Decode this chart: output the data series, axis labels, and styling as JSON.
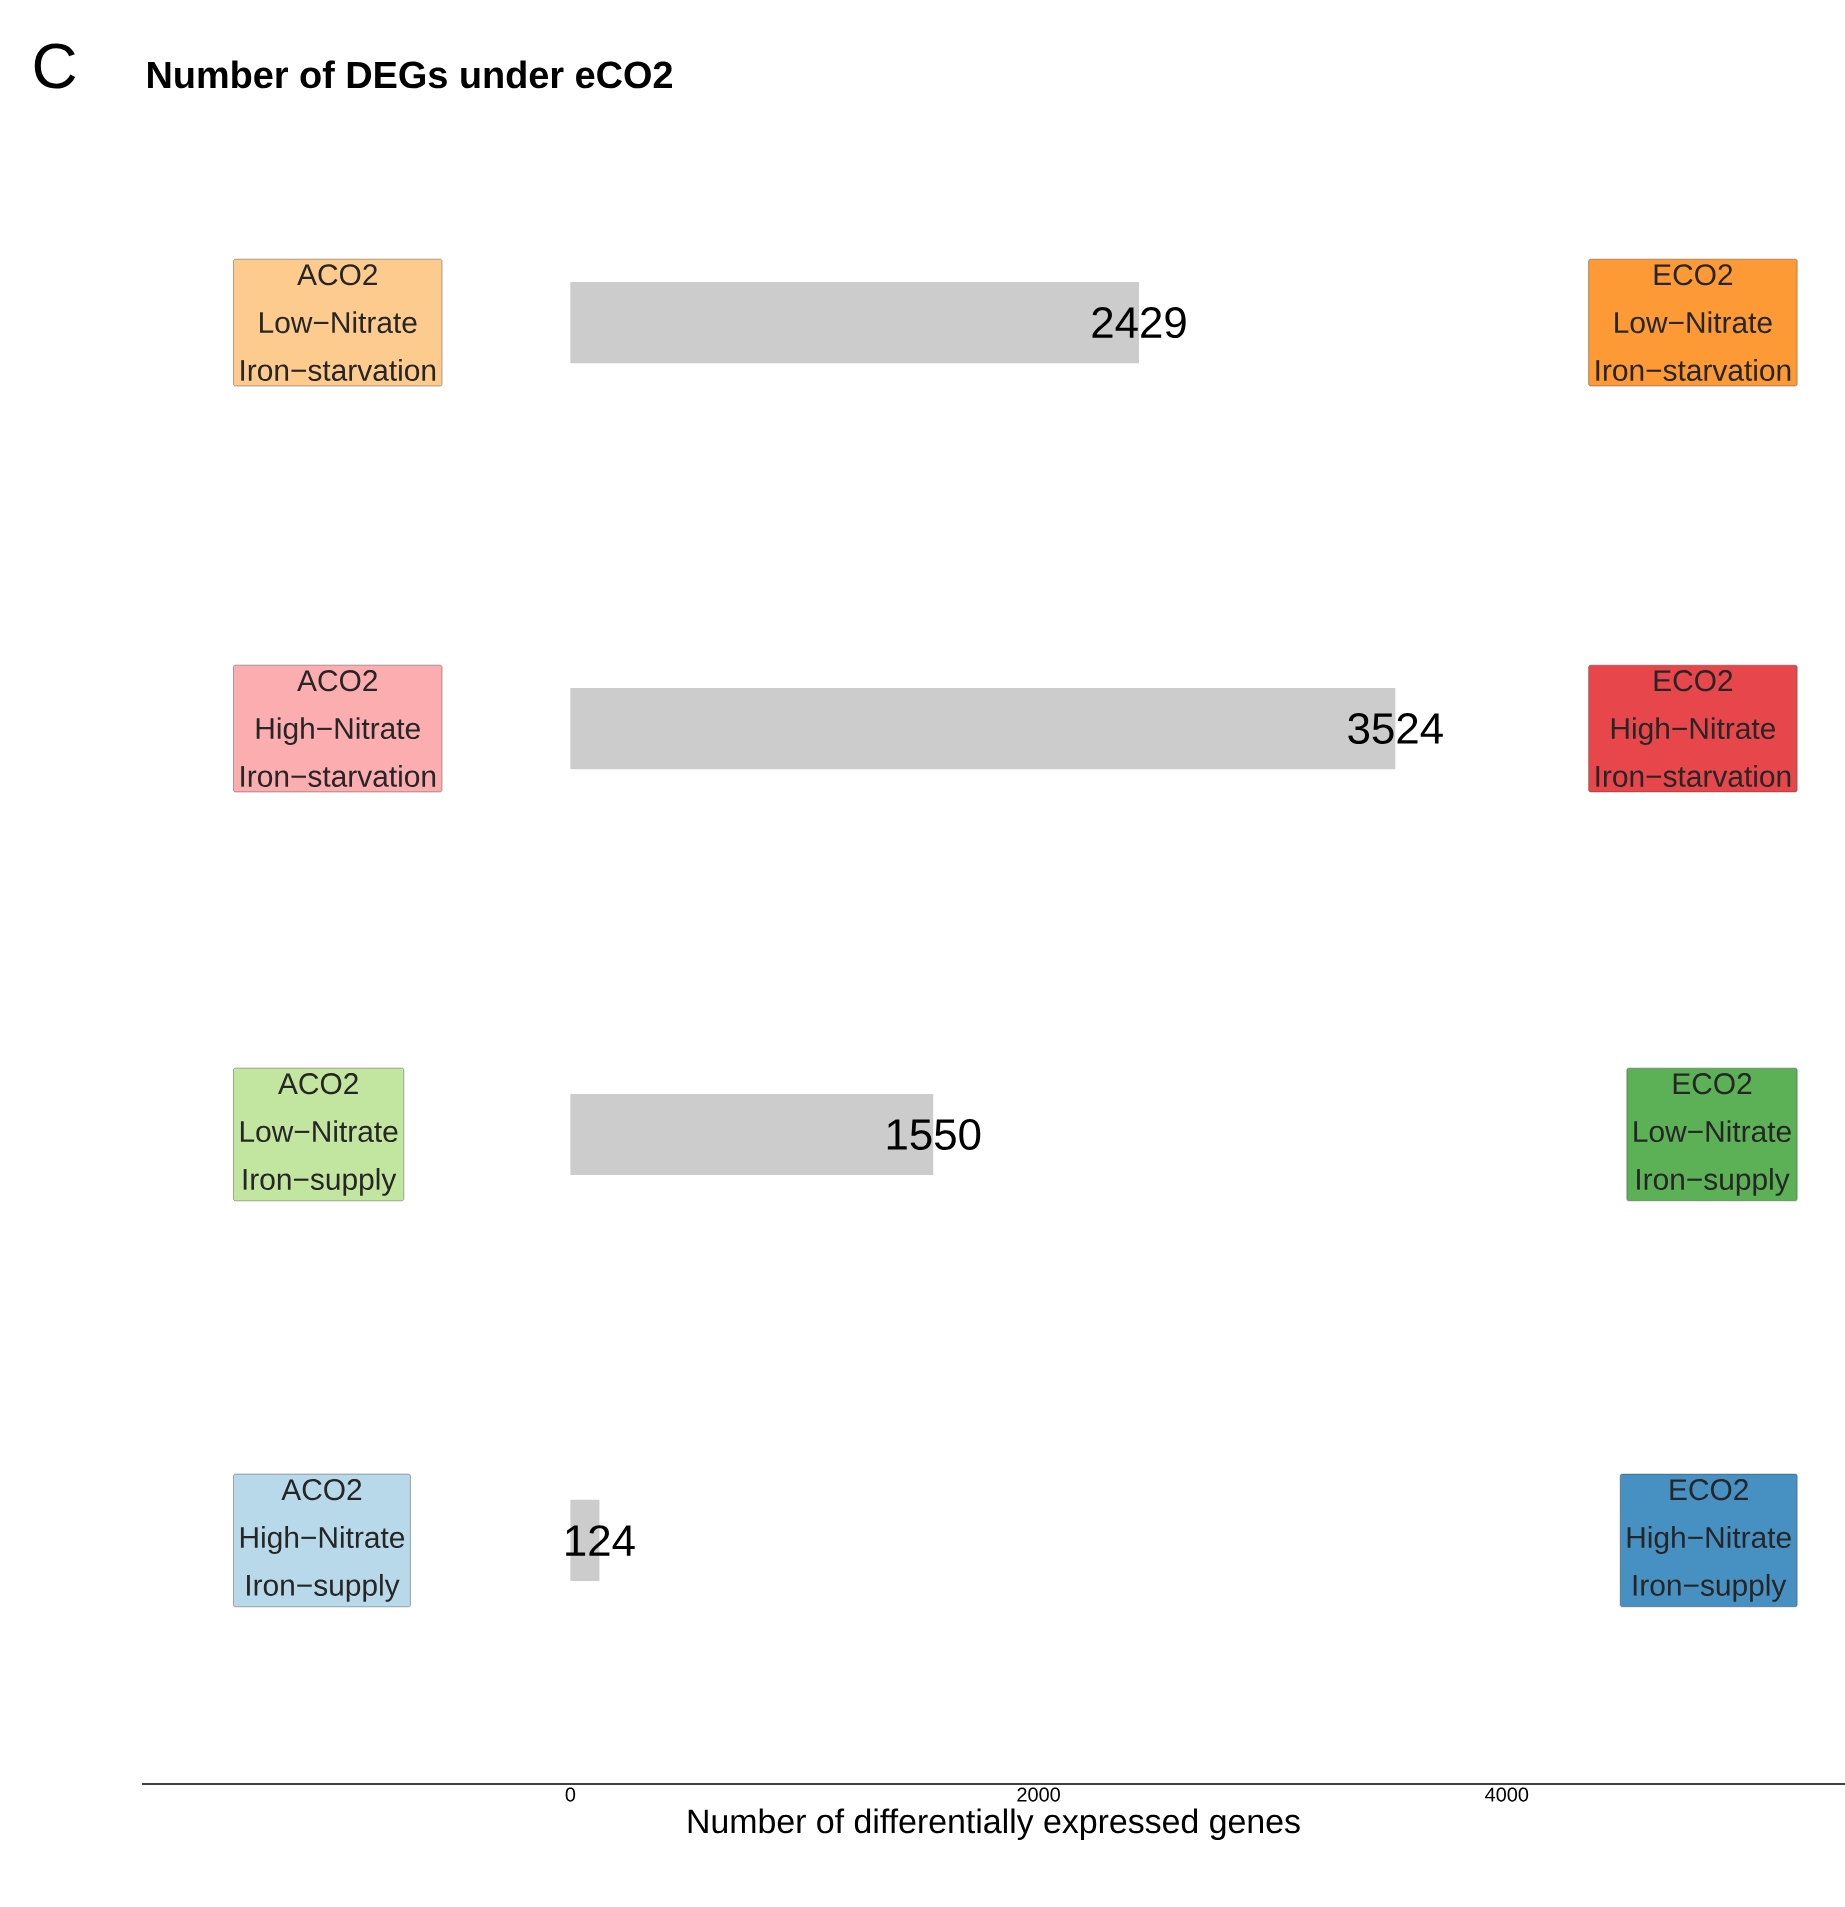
{
  "chart_data": {
    "type": "bar",
    "orientation": "horizontal",
    "title": "Number of DEGs under eCO2",
    "xlabel": "Number of differentially expressed genes",
    "categories": [
      "ACO2 Low−Nitrate Iron−starvation",
      "ACO2 High−Nitrate Iron−starvation",
      "ACO2 Low−Nitrate Iron−supply",
      "ACO2 High−Nitrate Iron−supply"
    ],
    "values": [
      2429,
      3524,
      1550,
      124
    ],
    "color": "#cccccc",
    "data_labels": true,
    "xlim": [
      -1830,
      5445
    ],
    "xticks": [
      0,
      2000,
      4000
    ],
    "annotations": [
      "C",
      "ECO2 Low−Nitrate Iron−starvation",
      "ECO2 High−Nitrate Iron−starvation",
      "ECO2 Low−Nitrate Iron−supply",
      "ECO2 High−Nitrate Iron−supply"
    ]
  }
}
